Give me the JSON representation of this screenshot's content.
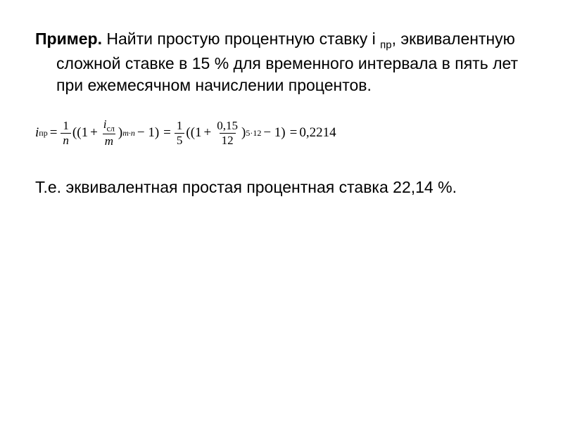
{
  "problem": {
    "label_bold": "Пример.",
    "text_part1": "  Найти простую процентную ставку i ",
    "subscript": "пр",
    "text_part2": ", эквивалентную сложной ставке в 15 % для временного интервала в пять лет при ежемесячном начислении процентов."
  },
  "formula": {
    "lhs_var": "i",
    "lhs_sub": "пр",
    "eq": "=",
    "frac1_num": "1",
    "frac1_den": "n",
    "lparen1": "((1",
    "plus1": "+",
    "frac2_num_var": "i",
    "frac2_num_sub": "сл",
    "frac2_den": "m",
    "rparen1": ")",
    "exp1": "m·n",
    "minus1": "− 1)",
    "eq2": "=",
    "frac3_num": "1",
    "frac3_den": "5",
    "lparen2": "((1",
    "plus2": "+",
    "frac4_num": "0,15",
    "frac4_den": "12",
    "rparen2": ")",
    "exp2": "5·12",
    "minus2": "− 1)",
    "eq3": "=",
    "result": "0,2214"
  },
  "conclusion": {
    "text": "Т.е. эквивалентная простая процентная ставка 22,14 %."
  },
  "style": {
    "body_fontsize": 23,
    "formula_fontsize": 19,
    "sub_fontsize": 12,
    "background": "#ffffff",
    "text_color": "#000000"
  }
}
